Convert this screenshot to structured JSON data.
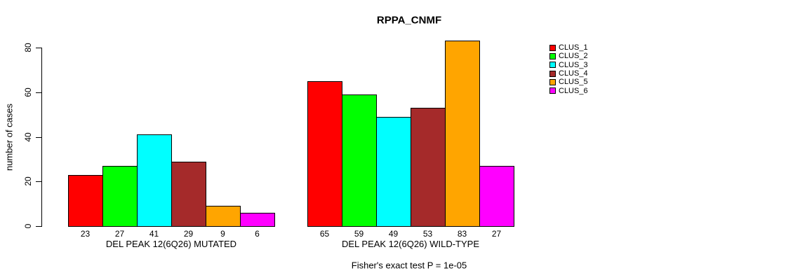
{
  "chart_data": {
    "type": "bar",
    "title": "RPPA_CNMF",
    "ylabel": "number of cases",
    "ylim": [
      0,
      80
    ],
    "yticks": [
      0,
      20,
      40,
      60,
      80
    ],
    "grid": false,
    "legend_position": "right",
    "clusters": [
      {
        "name": "CLUS_1",
        "color": "#FF0000"
      },
      {
        "name": "CLUS_2",
        "color": "#00FF00"
      },
      {
        "name": "CLUS_3",
        "color": "#00FFFF"
      },
      {
        "name": "CLUS_4",
        "color": "#A52A2A"
      },
      {
        "name": "CLUS_5",
        "color": "#FFA500"
      },
      {
        "name": "CLUS_6",
        "color": "#FF00FF"
      }
    ],
    "groups": [
      {
        "label": "DEL PEAK 12(6Q26) MUTATED",
        "values": [
          23,
          27,
          41,
          29,
          9,
          6
        ]
      },
      {
        "label": "DEL PEAK 12(6Q26) WILD-TYPE",
        "values": [
          65,
          59,
          49,
          53,
          83,
          27
        ]
      }
    ],
    "annotation": "Fisher's exact test P = 1e-05"
  }
}
